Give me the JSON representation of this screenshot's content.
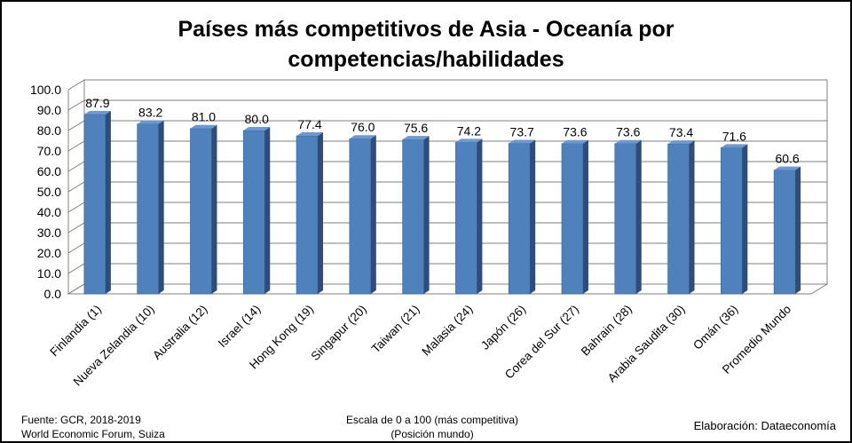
{
  "chart_data": {
    "type": "bar",
    "title_line1": "Países más competitivos de Asia - Oceanía por",
    "title_line2": "competencias/habilidades",
    "categories": [
      "Finlandia (1)",
      "Nueva Zelandia (10)",
      "Australia (12)",
      "Israel (14)",
      "Hong Kong (19)",
      "Singapur (20)",
      "Taiwan (21)",
      "Malasia (24)",
      "Japón (26)",
      "Corea del Sur (27)",
      "Bahrain (28)",
      "Arabia Saudita (30)",
      "Omán (36)",
      "Promedio Mundo"
    ],
    "values": [
      87.9,
      83.2,
      81.0,
      80.0,
      77.4,
      76.0,
      75.6,
      74.2,
      73.7,
      73.6,
      73.6,
      73.4,
      71.6,
      60.6
    ],
    "y_ticks": [
      "0.0",
      "10.0",
      "20.0",
      "30.0",
      "40.0",
      "50.0",
      "60.0",
      "70.0",
      "80.0",
      "90.0",
      "100.0"
    ],
    "ylim": [
      0,
      100
    ],
    "grid": true,
    "legend": "none",
    "bar_color": "#4F81BD",
    "bar_side_color": "#2E4D7A",
    "bar_top_color": "#6E98CE"
  },
  "footer": {
    "source_line1": "Fuente:  GCR, 2018-2019",
    "source_line2": "World Economic Forum, Suiza",
    "scale_line1": "Escala de 0 a 100 (más competitiva)",
    "scale_line2": "(Posición mundo)",
    "credit": "Elaboración: Dataeconomía"
  }
}
